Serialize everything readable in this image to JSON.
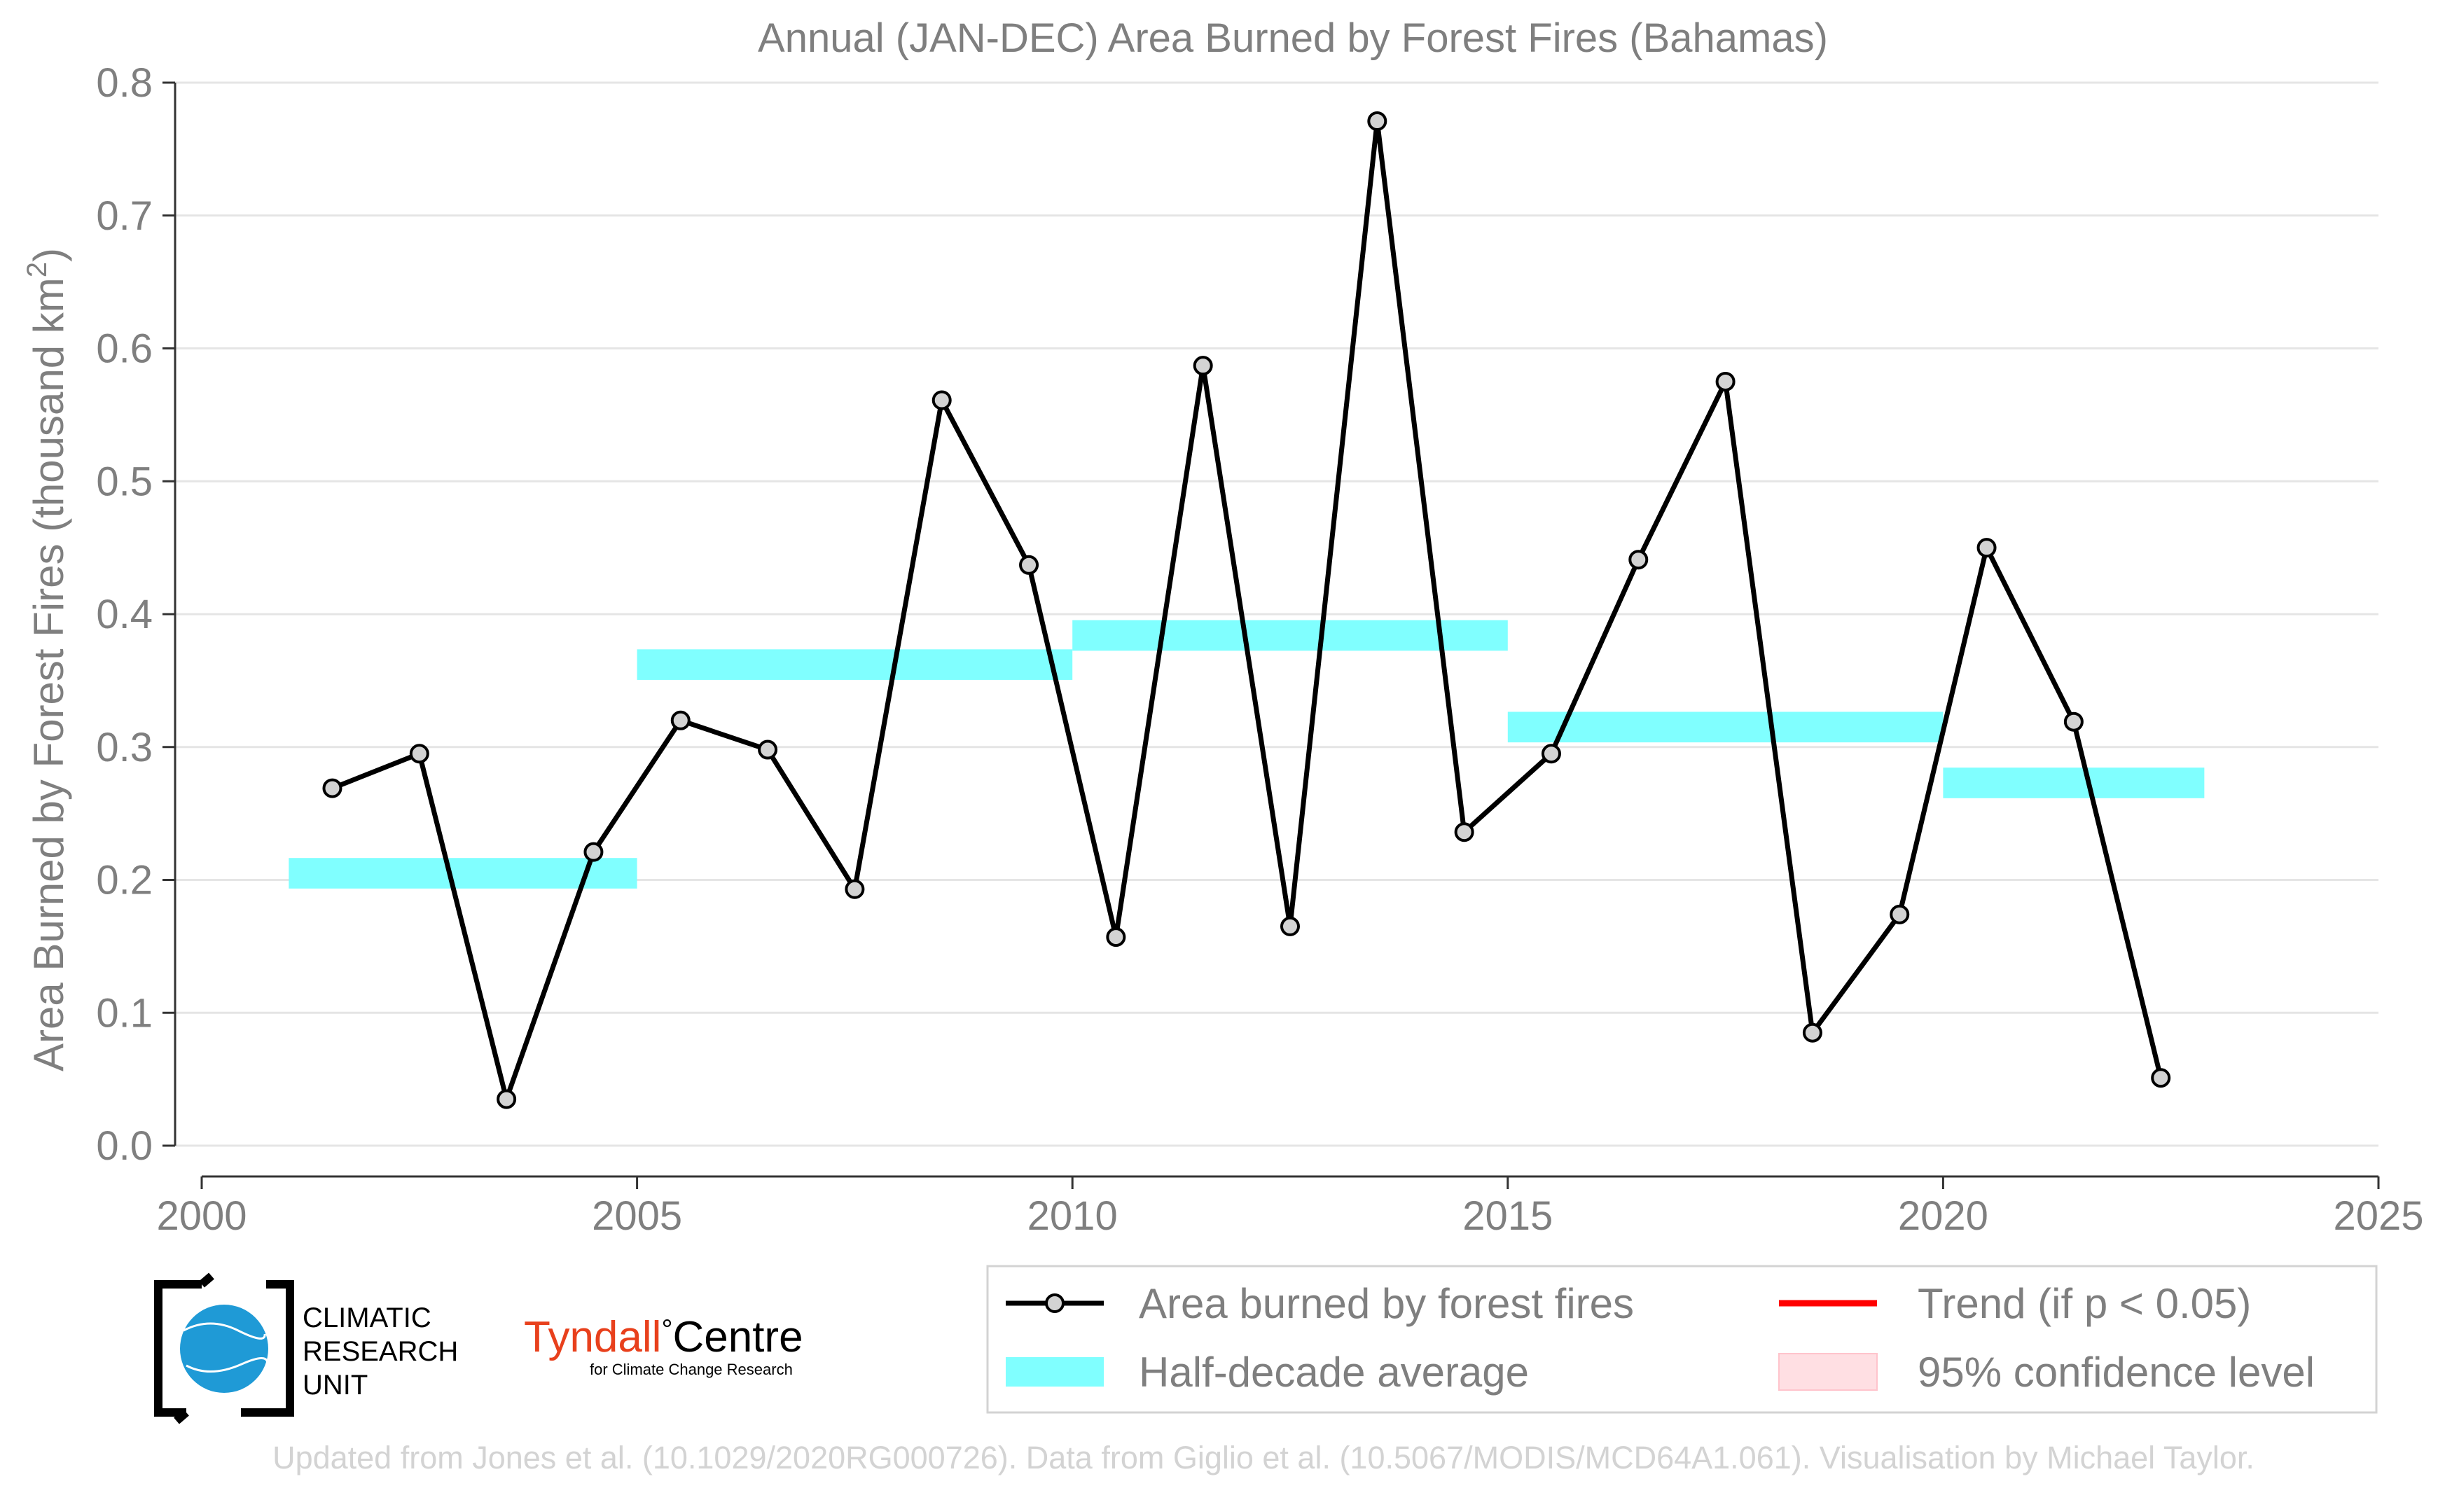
{
  "chart_data": {
    "type": "line",
    "title": "Annual (JAN-DEC) Area Burned by Forest Fires (Bahamas)",
    "ylabel": "Area Burned by Forest Fires (thousand km",
    "ylabel_sup": "2",
    "ylabel_end": ")",
    "xlim": [
      2000,
      2025
    ],
    "ylim": [
      0.0,
      0.8
    ],
    "x_ticks": [
      "2000",
      "2005",
      "2010",
      "2015",
      "2020",
      "2025"
    ],
    "y_ticks": [
      "0.0",
      "0.1",
      "0.2",
      "0.3",
      "0.4",
      "0.5",
      "0.6",
      "0.7",
      "0.8"
    ],
    "grid": true,
    "series": [
      {
        "name": "Area burned by forest fires",
        "color": "#000000",
        "marker_color": "#d3d3d3",
        "x": [
          2001.5,
          2002.5,
          2003.5,
          2004.5,
          2005.5,
          2006.5,
          2007.5,
          2008.5,
          2009.5,
          2010.5,
          2011.5,
          2012.5,
          2013.5,
          2014.5,
          2015.5,
          2016.5,
          2017.5,
          2018.5,
          2019.5,
          2020.5,
          2021.5,
          2022.5
        ],
        "y": [
          0.269,
          0.295,
          0.035,
          0.221,
          0.32,
          0.298,
          0.193,
          0.561,
          0.437,
          0.157,
          0.587,
          0.165,
          0.771,
          0.236,
          0.295,
          0.441,
          0.575,
          0.085,
          0.174,
          0.45,
          0.319,
          0.051
        ]
      }
    ],
    "half_decade": {
      "name": "Half-decade average",
      "color": "#80ffff",
      "segments": [
        {
          "x0": 2001,
          "x1": 2005,
          "y": 0.205
        },
        {
          "x0": 2005,
          "x1": 2010,
          "y": 0.362
        },
        {
          "x0": 2010,
          "x1": 2015,
          "y": 0.384
        },
        {
          "x0": 2015,
          "x1": 2020,
          "y": 0.315
        },
        {
          "x0": 2020,
          "x1": 2023,
          "y": 0.273
        }
      ]
    },
    "legend": {
      "placement": "bottom-right",
      "entries": [
        {
          "label": "Area burned by forest fires",
          "kind": "line-marker",
          "color": "#000000"
        },
        {
          "label": "Trend (if p < 0.05)",
          "kind": "line",
          "color": "#ff0000"
        },
        {
          "label": "Half-decade average",
          "kind": "band",
          "color": "#80ffff"
        },
        {
          "label": "95% confidence level",
          "kind": "band",
          "color": "#ffdfe3"
        }
      ]
    }
  },
  "logos": {
    "cru_lines": [
      "CLIMATIC",
      "RESEARCH",
      "UNIT"
    ],
    "tyndall_name": "Tyndall",
    "tyndall_degree": "°",
    "tyndall_centre": "Centre",
    "tyndall_sub": "for Climate Change Research"
  },
  "footer": "Updated from Jones et al. (10.1029/2020RG000726). Data from Giglio et al. (10.5067/MODIS/MCD64A1.061). Visualisation by Michael Taylor."
}
